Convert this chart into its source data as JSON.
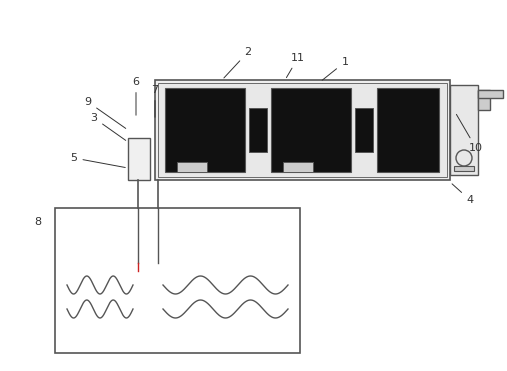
{
  "fig_width": 5.07,
  "fig_height": 3.71,
  "dpi": 100,
  "bg_color": "#ffffff",
  "line_color": "#555555",
  "dark_color": "#111111",
  "fs": 8
}
